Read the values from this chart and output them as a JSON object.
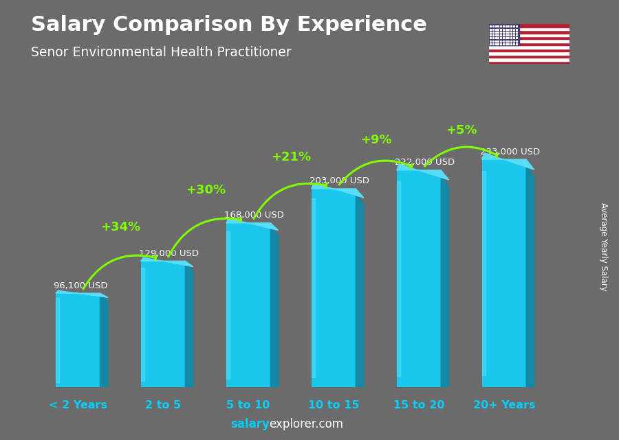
{
  "title": "Salary Comparison By Experience",
  "subtitle": "Senor Environmental Health Practitioner",
  "categories": [
    "< 2 Years",
    "2 to 5",
    "5 to 10",
    "10 to 15",
    "15 to 20",
    "20+ Years"
  ],
  "values": [
    96100,
    129000,
    168000,
    203000,
    222000,
    233000
  ],
  "labels": [
    "96,100 USD",
    "129,000 USD",
    "168,000 USD",
    "203,000 USD",
    "222,000 USD",
    "233,000 USD"
  ],
  "pct_changes": [
    "+34%",
    "+30%",
    "+21%",
    "+9%",
    "+5%"
  ],
  "bar_color_face": "#1ac8ed",
  "bar_color_right": "#0e8baa",
  "bar_color_top": "#5adcf5",
  "bar_color_bottom_face": "#0a7090",
  "bg_color": "#6b6b6b",
  "title_color": "#ffffff",
  "subtitle_color": "#ffffff",
  "label_color": "#ffffff",
  "pct_color": "#7fff00",
  "arrow_color": "#7fff00",
  "cat_color": "#00cfff",
  "ylabel_text": "Average Yearly Salary",
  "ylabel_color": "#ffffff",
  "footer_salary_color": "#00cfff",
  "footer_explorer_color": "#ffffff",
  "ylim_max": 270000,
  "bar_width": 0.52
}
